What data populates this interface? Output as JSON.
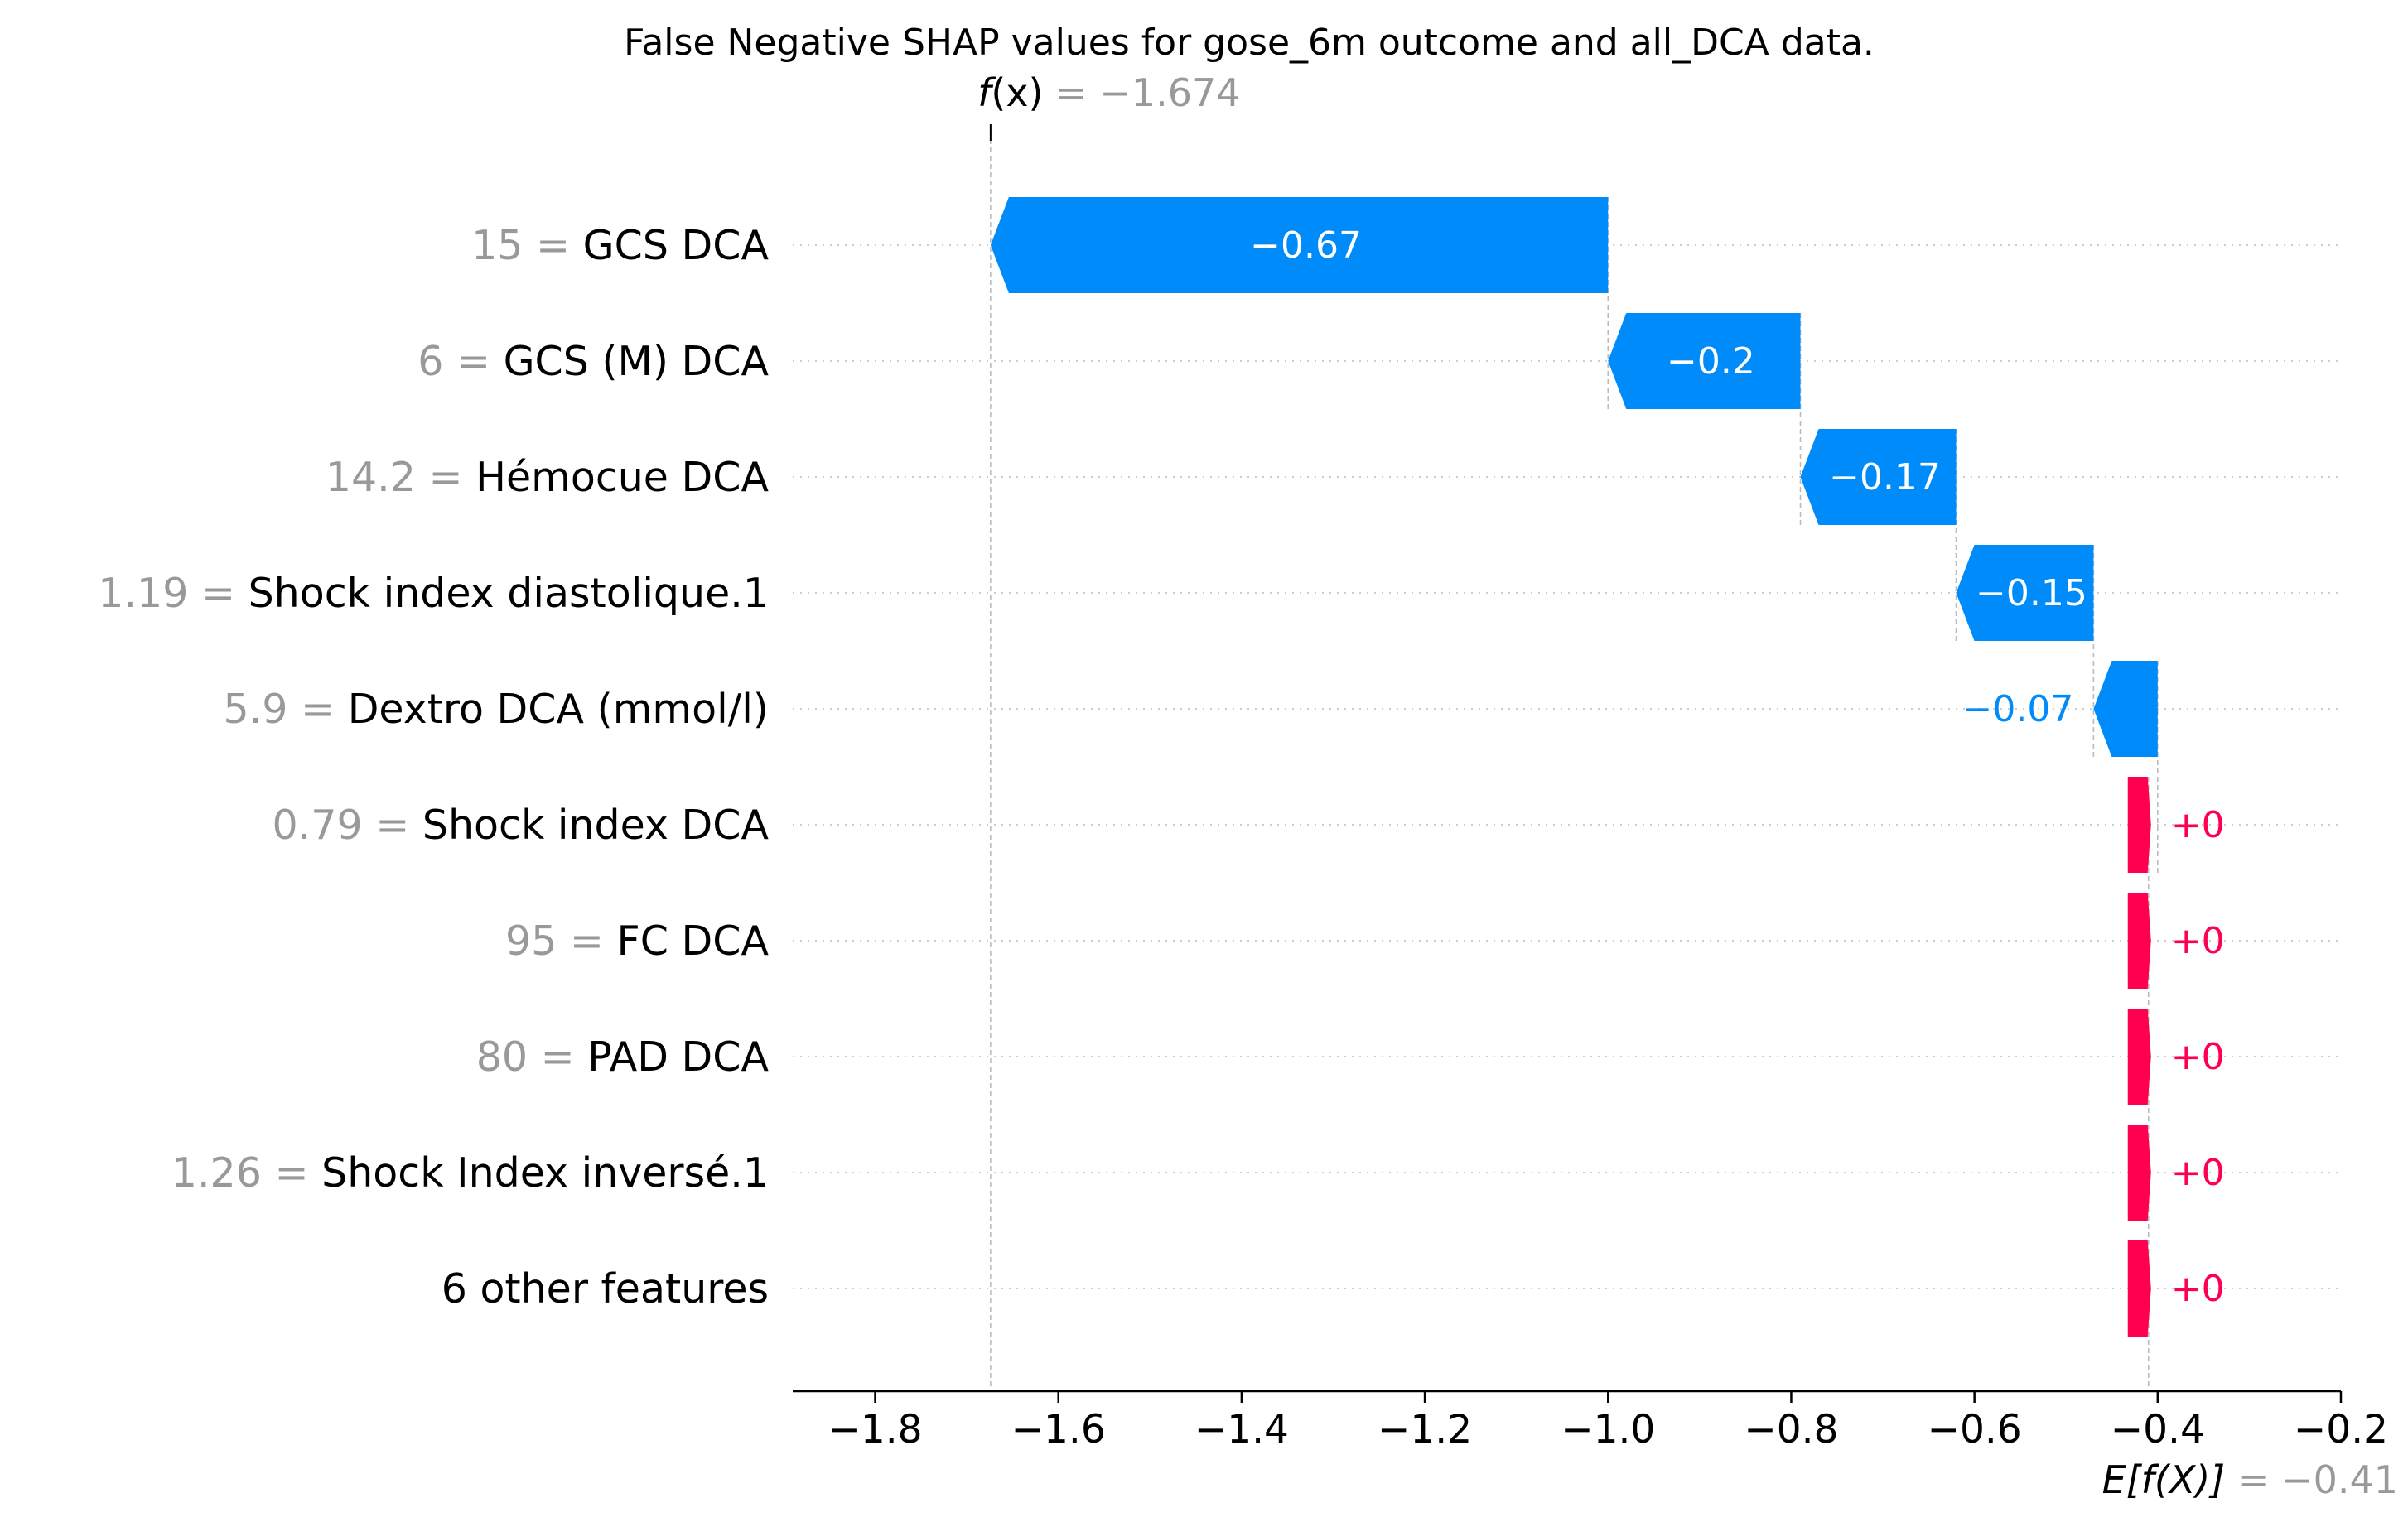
{
  "chart_data": {
    "type": "waterfall",
    "title": "False Negative SHAP values for gose_6m outcome and all_DCA data.",
    "fx": {
      "label_italic": "f",
      "label_rest": "(x)",
      "eq": " = ",
      "value_text": "−1.674",
      "value": -1.674
    },
    "expected": {
      "label": "E[f(X)]",
      "eq": " = ",
      "value_text": "−0.41",
      "value": -0.41
    },
    "xlim": [
      -1.89,
      -0.2
    ],
    "x_ticks": [
      -1.8,
      -1.6,
      -1.4,
      -1.2,
      -1.0,
      -0.8,
      -0.6,
      -0.4,
      -0.2
    ],
    "x_tick_labels": [
      "−1.8",
      "−1.6",
      "−1.4",
      "−1.2",
      "−1.0",
      "−0.8",
      "−0.6",
      "−0.4",
      "−0.2"
    ],
    "features": [
      {
        "value": "15",
        "name": "GCS DCA",
        "shap": -0.67,
        "shap_label": "−0.67",
        "start": -1.0,
        "end": -1.674
      },
      {
        "value": "6",
        "name": "GCS (M) DCA",
        "shap": -0.2,
        "shap_label": "−0.2",
        "start": -0.79,
        "end": -1.0
      },
      {
        "value": "14.2",
        "name": "Hémocue DCA",
        "shap": -0.17,
        "shap_label": "−0.17",
        "start": -0.62,
        "end": -0.79
      },
      {
        "value": "1.19",
        "name": "Shock index diastolique.1",
        "shap": -0.15,
        "shap_label": "−0.15",
        "start": -0.47,
        "end": -0.62
      },
      {
        "value": "5.9",
        "name": "Dextro DCA (mmol/l)",
        "shap": -0.07,
        "shap_label": "−0.07",
        "start": -0.4,
        "end": -0.47
      },
      {
        "value": "0.79",
        "name": "Shock index DCA",
        "shap": 0.0,
        "shap_label": "+0",
        "start": -0.41,
        "end": -0.4
      },
      {
        "value": "95",
        "name": "FC  DCA",
        "shap": 0.0,
        "shap_label": "+0",
        "start": -0.41,
        "end": -0.41
      },
      {
        "value": "80",
        "name": "PAD DCA",
        "shap": 0.0,
        "shap_label": "+0",
        "start": -0.41,
        "end": -0.41
      },
      {
        "value": "1.26",
        "name": "Shock Index inversé.1",
        "shap": 0.0,
        "shap_label": "+0",
        "start": -0.41,
        "end": -0.41
      },
      {
        "value": "",
        "name": "6 other features",
        "shap": 0.0,
        "shap_label": "+0",
        "start": -0.41,
        "end": -0.41
      }
    ],
    "colors": {
      "negative": "#008bfb",
      "positive": "#ff0051",
      "value_gray": "#999999",
      "text": "#000000",
      "guide": "#bbbbbb",
      "grid": "#cccccc"
    }
  }
}
